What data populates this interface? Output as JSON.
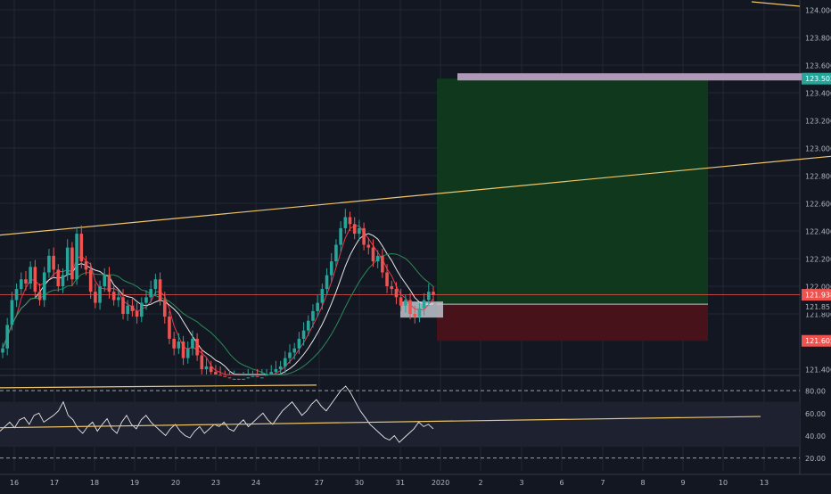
{
  "colors": {
    "background": "#131722",
    "grid": "#232734",
    "axis_text": "#b2b5be",
    "candle_up": "#26a69a",
    "candle_down": "#ef5350",
    "trendline": "#f0c66a",
    "ma_fast": "#e53950",
    "ma_mid": "#e8e8e8",
    "ma_slow": "#2a8a58",
    "profit_zone": "#0f3a1e",
    "loss_zone": "#4a121a",
    "target_bar": "#b098b8",
    "last_price": "#ef5350",
    "rsi_line": "#e8e8e8",
    "rsi_band": "#1e2230"
  },
  "chart_data": [
    {
      "type": "candlestick",
      "title": "",
      "y_ticks": [
        "124.000",
        "123.800",
        "123.600",
        "123.400",
        "123.200",
        "123.000",
        "122.800",
        "122.600",
        "122.400",
        "122.200",
        "122.000",
        "121.800",
        "121.400"
      ],
      "x_ticks": [
        "16",
        "17",
        "18",
        "19",
        "20",
        "23",
        "24",
        "27",
        "30",
        "31",
        "2020",
        "2",
        "3",
        "6",
        "7",
        "8",
        "9",
        "10",
        "13"
      ],
      "ylim": [
        121.38,
        124.05
      ],
      "price_labels": {
        "target": "123.502",
        "last": "121.938",
        "ma": "121.851",
        "stop": "121.605"
      },
      "levels": {
        "target": 123.502,
        "last": 121.938,
        "ma": 121.851,
        "stop": 121.605,
        "entry": 121.87
      },
      "trendlines": [
        {
          "from": [
            "16-start",
            122.37
          ],
          "to": [
            "13-end",
            122.93
          ]
        },
        {
          "from": [
            "16-start",
            121.38
          ],
          "to": [
            "27-mid",
            121.4
          ]
        },
        {
          "from": [
            "13-end",
            124.06
          ],
          "to": [
            "13-end+",
            124.04
          ]
        }
      ],
      "close_series": [
        121.55,
        121.72,
        121.9,
        121.98,
        122.05,
        122.02,
        122.14,
        121.96,
        121.9,
        122.1,
        122.22,
        122.12,
        122.0,
        122.08,
        122.28,
        122.05,
        122.38,
        122.18,
        122.12,
        121.96,
        121.88,
        122.0,
        122.08,
        121.96,
        121.9,
        121.92,
        121.8,
        121.86,
        121.82,
        121.78,
        121.88,
        121.92,
        121.98,
        122.05,
        121.9,
        121.78,
        121.62,
        121.55,
        121.6,
        121.48,
        121.55,
        121.62,
        121.5,
        121.4,
        121.42,
        121.38,
        121.36,
        121.35,
        121.34,
        121.33,
        121.33,
        121.32,
        121.33,
        121.34,
        121.35,
        121.33,
        121.34,
        121.36,
        121.38,
        121.4,
        121.42,
        121.48,
        121.52,
        121.55,
        121.62,
        121.68,
        121.75,
        121.82,
        121.88,
        121.98,
        122.08,
        122.18,
        122.3,
        122.42,
        122.5,
        122.45,
        122.38,
        122.42,
        122.3,
        122.28,
        122.18,
        122.22,
        122.1,
        122.0,
        121.98,
        121.92,
        121.86,
        121.9,
        121.8,
        121.78,
        121.84,
        121.9,
        121.96,
        121.94
      ]
    },
    {
      "type": "line",
      "title": "",
      "y_ticks": [
        "80.00",
        "60.00",
        "40.00",
        "20.00"
      ],
      "ylim": [
        15,
        88
      ],
      "band": [
        30,
        70
      ],
      "rsi_series": [
        44,
        48,
        52,
        47,
        54,
        56,
        50,
        58,
        60,
        52,
        55,
        58,
        62,
        70,
        58,
        54,
        46,
        42,
        48,
        52,
        44,
        50,
        55,
        46,
        42,
        52,
        58,
        50,
        46,
        54,
        58,
        52,
        48,
        44,
        40,
        46,
        50,
        44,
        40,
        38,
        44,
        48,
        42,
        46,
        50,
        48,
        52,
        46,
        44,
        50,
        54,
        48,
        52,
        56,
        60,
        54,
        50,
        56,
        62,
        66,
        70,
        64,
        58,
        62,
        68,
        72,
        66,
        62,
        68,
        74,
        80,
        84,
        78,
        70,
        62,
        56,
        50,
        46,
        42,
        38,
        36,
        40,
        34,
        38,
        42,
        46,
        52,
        48,
        50,
        46
      ],
      "trendline": {
        "from": 47,
        "to": 57
      }
    }
  ]
}
